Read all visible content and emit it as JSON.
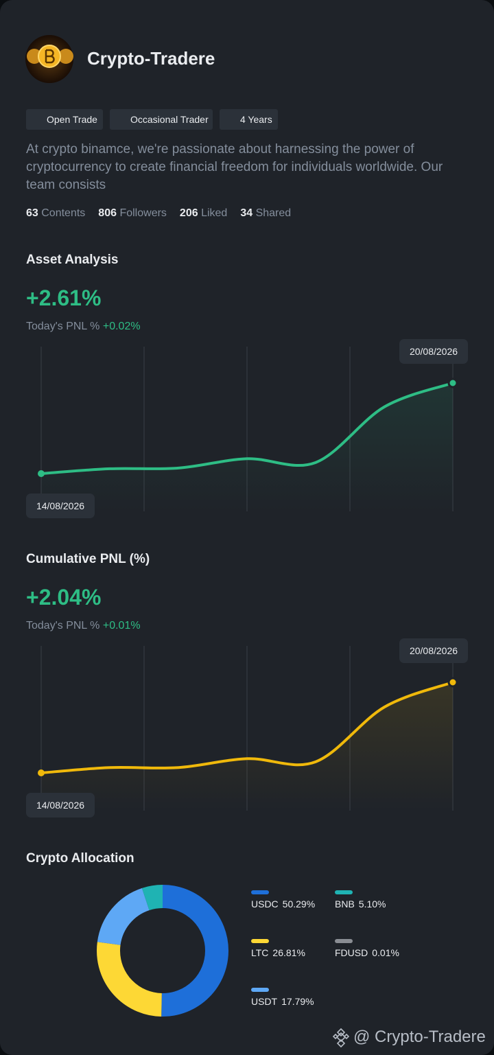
{
  "profile": {
    "name": "Crypto-Tradere",
    "tags": [
      "Open Trade",
      "Occasional Trader",
      "4 Years"
    ],
    "description": "At crypto binamce, we're passionate about harnessing the power of cryptocurrency to create financial freedom for individuals worldwide. Our team consists",
    "stats": [
      {
        "value": 63,
        "label": "Contents"
      },
      {
        "value": 806,
        "label": "Followers"
      },
      {
        "value": 206,
        "label": "Liked"
      },
      {
        "value": 34,
        "label": "Shared"
      }
    ]
  },
  "asset_analysis": {
    "title": "Asset Analysis",
    "value": "+2.61%",
    "pnl_label": "Today's PNL %",
    "pnl_value": "+0.02%",
    "chart": {
      "type": "line",
      "categories": [
        "14/08/2026",
        null,
        null,
        null,
        null,
        null,
        "20/08/2026"
      ],
      "values": [
        0,
        0.14,
        0.16,
        0.43,
        0.32,
        1.92,
        2.61
      ],
      "color": "#2ebd85"
    }
  },
  "cumulative_pnl": {
    "title": "Cumulative PNL (%)",
    "value": "+2.04%",
    "pnl_label": "Today's PNL %",
    "pnl_value": "+0.01%",
    "chart": {
      "type": "line",
      "categories": [
        "14/08/2026",
        null,
        null,
        null,
        null,
        null,
        "20/08/2026"
      ],
      "values": [
        0,
        0.12,
        0.12,
        0.32,
        0.25,
        1.48,
        2.04
      ],
      "color": "#f0b90b"
    }
  },
  "allocation": {
    "title": "Crypto Allocation",
    "chart": {
      "type": "pie",
      "categories": [
        "USDC",
        "LTC",
        "USDT",
        "BNB",
        "FDUSD"
      ],
      "values": [
        50.29,
        26.81,
        17.79,
        5.1,
        0.01
      ],
      "value_labels": [
        "50.29%",
        "26.81%",
        "17.79%",
        "5.10%",
        "0.01%"
      ],
      "colors": [
        "#1e6fd9",
        "#fdd835",
        "#5ea8f5",
        "#1fb3b3",
        "#8a8d93"
      ]
    }
  },
  "footer": {
    "watermark": "@ Crypto-Tradere"
  }
}
